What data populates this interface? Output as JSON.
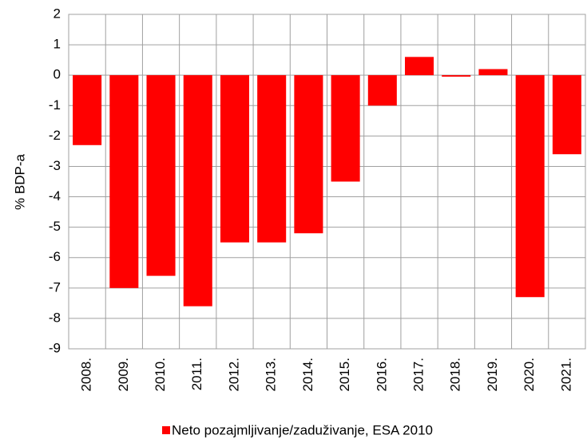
{
  "chart_data": {
    "type": "bar",
    "y_label": "% BDP-a",
    "categories": [
      "2008.",
      "2009.",
      "2010.",
      "2011.",
      "2012.",
      "2013.",
      "2014.",
      "2015.",
      "2016.",
      "2017.",
      "2018.",
      "2019.",
      "2020.",
      "2021."
    ],
    "series": [
      {
        "name": "Neto pozajmljivanje/zaduživanje, ESA 2010",
        "color": "#ff0000",
        "values": [
          -2.3,
          -7.0,
          -6.6,
          -7.6,
          -5.5,
          -5.5,
          -5.2,
          -3.5,
          -1.0,
          0.6,
          -0.05,
          0.2,
          -7.3,
          -2.6
        ]
      }
    ],
    "ylim": [
      -9,
      2
    ],
    "yticks": [
      -9,
      -8,
      -7,
      -6,
      -5,
      -4,
      -3,
      -2,
      -1,
      0,
      1,
      2
    ],
    "grid": true,
    "legend": "bottom"
  }
}
